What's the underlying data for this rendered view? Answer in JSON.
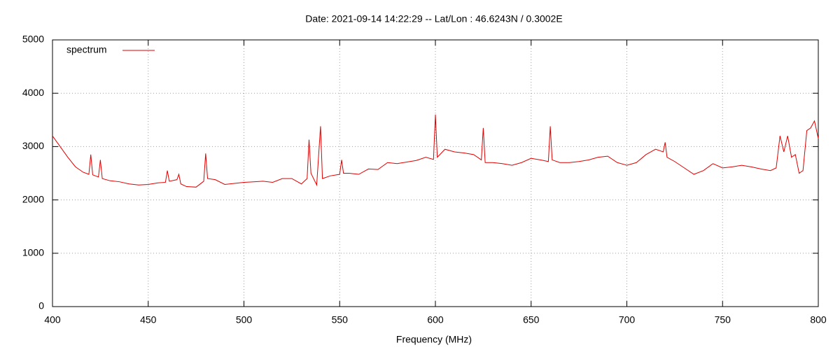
{
  "chart_data": {
    "type": "line",
    "title": "Date: 2021-09-14 14:22:29  --  Lat/Lon : 46.6243N / 0.3002E",
    "x_label": "Frequency (MHz)",
    "xlim": [
      400,
      800
    ],
    "xticks": [
      400,
      450,
      500,
      550,
      600,
      650,
      700,
      750,
      800
    ],
    "ylim": [
      0,
      5000
    ],
    "yticks": [
      0,
      1000,
      2000,
      3000,
      4000,
      5000
    ],
    "grid": true,
    "legend": "top-left",
    "x": [
      400,
      404,
      408,
      412,
      416,
      419,
      420,
      421,
      424,
      425,
      426,
      430,
      435,
      440,
      445,
      450,
      455,
      459,
      460,
      461,
      465,
      466,
      467,
      470,
      475,
      479,
      480,
      481,
      485,
      490,
      495,
      500,
      505,
      510,
      515,
      520,
      525,
      530,
      533,
      534,
      535,
      538,
      540,
      541,
      545,
      550,
      551,
      552,
      555,
      560,
      565,
      570,
      575,
      580,
      585,
      590,
      595,
      599,
      600,
      601,
      605,
      610,
      615,
      620,
      624,
      625,
      626,
      630,
      635,
      640,
      645,
      650,
      655,
      659,
      660,
      661,
      665,
      670,
      675,
      680,
      685,
      690,
      695,
      700,
      705,
      710,
      715,
      719,
      720,
      721,
      725,
      730,
      735,
      740,
      745,
      750,
      755,
      760,
      765,
      770,
      775,
      778,
      780,
      782,
      784,
      786,
      788,
      790,
      792,
      794,
      796,
      798,
      800
    ],
    "series": [
      {
        "name": "spectrum",
        "color": "#e00000",
        "values": [
          3200,
          3000,
          2800,
          2620,
          2520,
          2480,
          2850,
          2470,
          2430,
          2750,
          2400,
          2360,
          2340,
          2300,
          2280,
          2290,
          2320,
          2330,
          2550,
          2350,
          2380,
          2480,
          2300,
          2250,
          2240,
          2350,
          2870,
          2400,
          2380,
          2290,
          2310,
          2330,
          2340,
          2350,
          2330,
          2400,
          2400,
          2300,
          2400,
          3130,
          2500,
          2280,
          3380,
          2400,
          2450,
          2480,
          2750,
          2500,
          2500,
          2480,
          2580,
          2570,
          2700,
          2680,
          2710,
          2740,
          2800,
          2760,
          3600,
          2800,
          2950,
          2900,
          2880,
          2850,
          2750,
          3350,
          2700,
          2700,
          2680,
          2650,
          2700,
          2780,
          2750,
          2720,
          3380,
          2750,
          2700,
          2700,
          2720,
          2750,
          2800,
          2820,
          2700,
          2650,
          2700,
          2850,
          2950,
          2900,
          3080,
          2800,
          2720,
          2600,
          2480,
          2550,
          2680,
          2600,
          2620,
          2650,
          2620,
          2580,
          2550,
          2600,
          3200,
          2900,
          3200,
          2800,
          2850,
          2500,
          2550,
          3300,
          3350,
          3480,
          3150
        ]
      }
    ]
  }
}
